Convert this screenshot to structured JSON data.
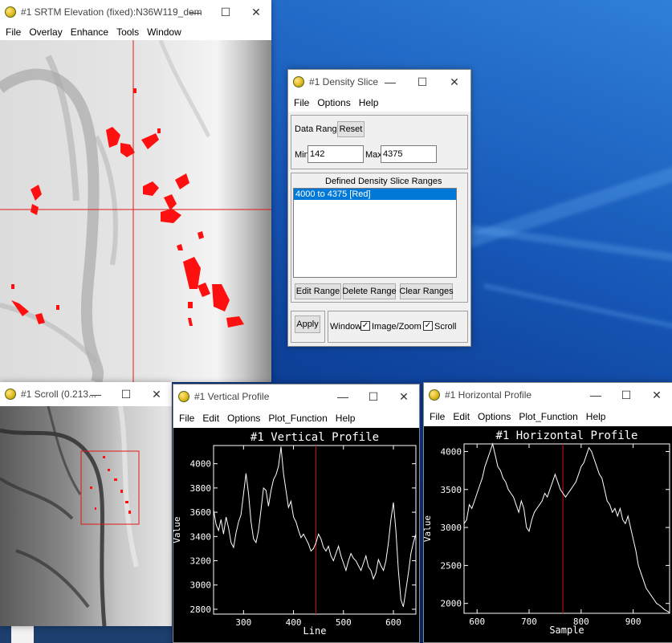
{
  "colors": {
    "slice_red": "#ff1010",
    "selection_blue": "#0078d7",
    "profile_line": "#ffffff",
    "cursor_line": "#d01010"
  },
  "main_window": {
    "title": "#1 SRTM Elevation (fixed):N36W119_dem",
    "menu": [
      "File",
      "Overlay",
      "Enhance",
      "Tools",
      "Window"
    ]
  },
  "density_slice": {
    "title": "#1 Density Slice",
    "menu": [
      "File",
      "Options",
      "Help"
    ],
    "data_range_label": "Data Range",
    "reset_label": "Reset",
    "min_label": "Min",
    "min_value": "142",
    "max_label": "Max",
    "max_value": "4375",
    "ranges_header": "Defined Density Slice Ranges",
    "ranges": [
      "4000 to 4375 [Red]"
    ],
    "edit_range": "Edit Range",
    "delete_range": "Delete Range",
    "clear_ranges": "Clear Ranges",
    "apply": "Apply",
    "window_label": "Window",
    "image_zoom_label": "Image/Zoom",
    "scroll_label": "Scroll",
    "image_zoom_checked": true,
    "scroll_checked": true
  },
  "scroll_window": {
    "title": "#1 Scroll (0.213..."
  },
  "vertical_profile": {
    "title": "#1 Vertical Profile",
    "menu": [
      "File",
      "Edit",
      "Options",
      "Plot_Function",
      "Help"
    ],
    "plot_title": "#1 Vertical Profile"
  },
  "horizontal_profile": {
    "title": "#1 Horizontal Profile",
    "menu": [
      "File",
      "Edit",
      "Options",
      "Plot_Function",
      "Help"
    ],
    "plot_title": "#1 Horizontal Profile"
  },
  "chart_data": [
    {
      "type": "line",
      "title": "#1 Vertical Profile",
      "xlabel": "Line",
      "ylabel": "Value",
      "xlim": [
        240,
        645
      ],
      "ylim": [
        2760,
        4150
      ],
      "xticks": [
        300,
        400,
        500,
        600
      ],
      "yticks": [
        2800,
        3000,
        3200,
        3400,
        3600,
        3800,
        4000
      ],
      "cursor_x": 445,
      "series": [
        {
          "x": [
            240,
            245,
            250,
            255,
            260,
            265,
            270,
            275,
            280,
            285,
            290,
            295,
            300,
            305,
            310,
            315,
            320,
            325,
            330,
            335,
            340,
            345,
            350,
            355,
            360,
            365,
            370,
            375,
            380,
            385,
            390,
            395,
            400,
            405,
            410,
            415,
            420,
            425,
            430,
            435,
            440,
            445,
            450,
            455,
            460,
            465,
            470,
            475,
            480,
            485,
            490,
            495,
            500,
            505,
            510,
            515,
            520,
            525,
            530,
            535,
            540,
            545,
            550,
            555,
            560,
            565,
            570,
            575,
            580,
            585,
            590,
            595,
            600,
            605,
            610,
            615,
            620,
            625,
            630,
            635,
            640,
            645
          ],
          "y": [
            3620,
            3500,
            3450,
            3540,
            3420,
            3560,
            3470,
            3350,
            3310,
            3430,
            3520,
            3580,
            3750,
            3920,
            3750,
            3520,
            3380,
            3350,
            3450,
            3620,
            3800,
            3780,
            3650,
            3780,
            3870,
            3910,
            3980,
            4140,
            3920,
            3780,
            3640,
            3690,
            3560,
            3520,
            3450,
            3390,
            3420,
            3380,
            3340,
            3280,
            3300,
            3350,
            3420,
            3380,
            3310,
            3280,
            3320,
            3240,
            3200,
            3260,
            3320,
            3240,
            3180,
            3120,
            3200,
            3260,
            3220,
            3200,
            3160,
            3120,
            3180,
            3240,
            3150,
            3120,
            3050,
            3100,
            3210,
            3160,
            3120,
            3200,
            3350,
            3540,
            3680,
            3450,
            3120,
            2880,
            2820,
            2960,
            3100,
            3260,
            3350,
            3420
          ]
        }
      ]
    },
    {
      "type": "line",
      "title": "#1 Horizontal Profile",
      "xlabel": "Sample",
      "ylabel": "Value",
      "xlim": [
        575,
        970
      ],
      "ylim": [
        1870,
        4100
      ],
      "xticks": [
        600,
        700,
        800,
        900
      ],
      "yticks": [
        2000,
        2500,
        3000,
        3500,
        4000
      ],
      "cursor_x": 765,
      "series": [
        {
          "x": [
            575,
            580,
            585,
            590,
            595,
            600,
            605,
            610,
            615,
            620,
            625,
            630,
            635,
            640,
            645,
            650,
            655,
            660,
            665,
            670,
            675,
            680,
            685,
            690,
            695,
            700,
            705,
            710,
            715,
            720,
            725,
            730,
            735,
            740,
            745,
            750,
            755,
            760,
            765,
            770,
            775,
            780,
            785,
            790,
            795,
            800,
            805,
            810,
            815,
            820,
            825,
            830,
            835,
            840,
            845,
            850,
            855,
            860,
            865,
            870,
            875,
            880,
            885,
            890,
            895,
            900,
            905,
            910,
            915,
            920,
            925,
            930,
            935,
            940,
            945,
            950,
            955,
            960,
            965,
            970
          ],
          "y": [
            3050,
            3100,
            3300,
            3250,
            3350,
            3450,
            3550,
            3650,
            3800,
            3900,
            4000,
            4100,
            3950,
            3800,
            3750,
            3650,
            3600,
            3500,
            3450,
            3400,
            3300,
            3200,
            3350,
            3250,
            3000,
            2950,
            3100,
            3200,
            3250,
            3300,
            3350,
            3450,
            3400,
            3500,
            3600,
            3700,
            3600,
            3500,
            3450,
            3400,
            3450,
            3500,
            3550,
            3600,
            3700,
            3800,
            3850,
            3950,
            4050,
            4000,
            3900,
            3800,
            3700,
            3650,
            3500,
            3350,
            3300,
            3200,
            3250,
            3150,
            3250,
            3100,
            3050,
            3150,
            3000,
            2850,
            2700,
            2500,
            2400,
            2300,
            2200,
            2150,
            2100,
            2050,
            2000,
            1980,
            1950,
            1920,
            1900,
            1880
          ]
        }
      ]
    }
  ]
}
